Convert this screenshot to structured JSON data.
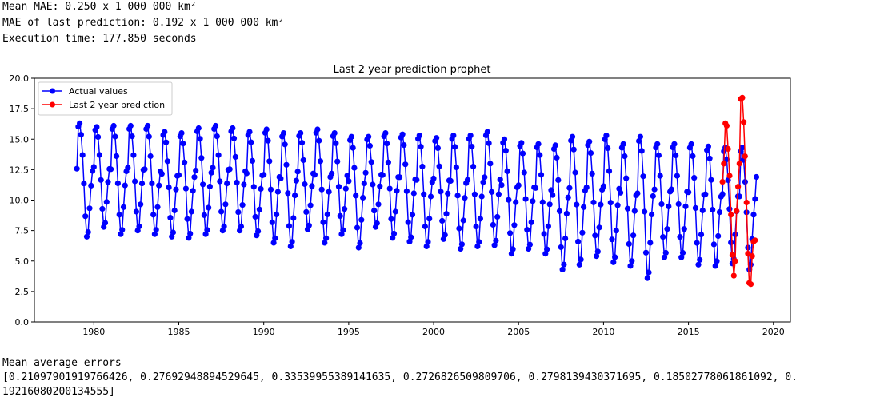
{
  "output": {
    "mean_mae": "Mean MAE: 0.250 x 1 000 000 km²",
    "last_mae": "MAE of last prediction: 0.192 x 1 000 000 km²",
    "exec_time": "Execution time: 177.850 seconds",
    "errors_title": "Mean average errors",
    "errors_line1": "[0.21097901919766426, 0.27692948894529645, 0.33539955389141635, 0.2726826509809706, 0.2798139430371695, 0.18502778061861092, 0.",
    "errors_line2": "19216080200134555]"
  },
  "chart_data": {
    "type": "line",
    "title": "Last 2 year prediction prophet",
    "xlabel": "",
    "ylabel": "",
    "xlim": [
      1976.5,
      2021.0
    ],
    "ylim": [
      0.0,
      20.0
    ],
    "xticks": [
      1980,
      1985,
      1990,
      1995,
      2000,
      2005,
      2010,
      2015,
      2020
    ],
    "xtick_labels": [
      "1980",
      "1985",
      "1990",
      "1995",
      "2000",
      "2005",
      "2010",
      "2015",
      "2020"
    ],
    "yticks": [
      0.0,
      2.5,
      5.0,
      7.5,
      10.0,
      12.5,
      15.0,
      17.5,
      20.0
    ],
    "ytick_labels": [
      "0.0",
      "2.5",
      "5.0",
      "7.5",
      "10.0",
      "12.5",
      "15.0",
      "17.5",
      "20.0"
    ],
    "grid": false,
    "legend_position": "top-left",
    "series": [
      {
        "name": "Actual values",
        "color": "#0000ff",
        "start_year": 1979,
        "end_year": 2019,
        "annual_max": [
          16.3,
          16.0,
          16.1,
          16.1,
          16.1,
          15.6,
          15.5,
          15.9,
          16.1,
          15.9,
          15.6,
          15.8,
          15.5,
          15.5,
          15.8,
          15.5,
          15.2,
          15.2,
          15.5,
          15.4,
          15.3,
          15.1,
          15.3,
          15.3,
          15.6,
          15.0,
          14.7,
          14.6,
          14.5,
          15.2,
          14.8,
          15.3,
          14.6,
          15.2,
          14.6,
          14.6,
          14.6,
          14.4,
          14.3,
          14.3
        ],
        "annual_min": [
          7.0,
          7.8,
          7.2,
          7.5,
          7.2,
          7.0,
          6.9,
          7.2,
          7.5,
          7.5,
          7.1,
          6.5,
          6.2,
          7.6,
          6.5,
          7.2,
          6.1,
          7.8,
          6.9,
          6.6,
          6.2,
          6.8,
          6.0,
          6.2,
          6.3,
          5.6,
          6.0,
          5.6,
          4.3,
          4.7,
          5.4,
          4.9,
          4.6,
          3.6,
          5.3,
          5.3,
          4.7,
          4.6,
          4.8,
          4.3
        ]
      },
      {
        "name": "Last 2 year prediction",
        "color": "#ff0000",
        "x": [
          2017.0,
          2017.08,
          2017.17,
          2017.25,
          2017.33,
          2017.42,
          2017.5,
          2017.58,
          2017.67,
          2017.75,
          2017.83,
          2017.92,
          2018.0,
          2018.08,
          2018.17,
          2018.25,
          2018.33,
          2018.42,
          2018.5,
          2018.58,
          2018.67,
          2018.75,
          2018.83,
          2018.92
        ],
        "y": [
          11.5,
          13.0,
          16.3,
          16.1,
          14.2,
          12.0,
          8.8,
          5.5,
          3.8,
          5.0,
          9.1,
          11.1,
          13.0,
          18.3,
          18.4,
          16.4,
          13.6,
          9.8,
          5.6,
          3.2,
          3.1,
          5.4,
          6.6,
          6.7
        ]
      }
    ]
  }
}
